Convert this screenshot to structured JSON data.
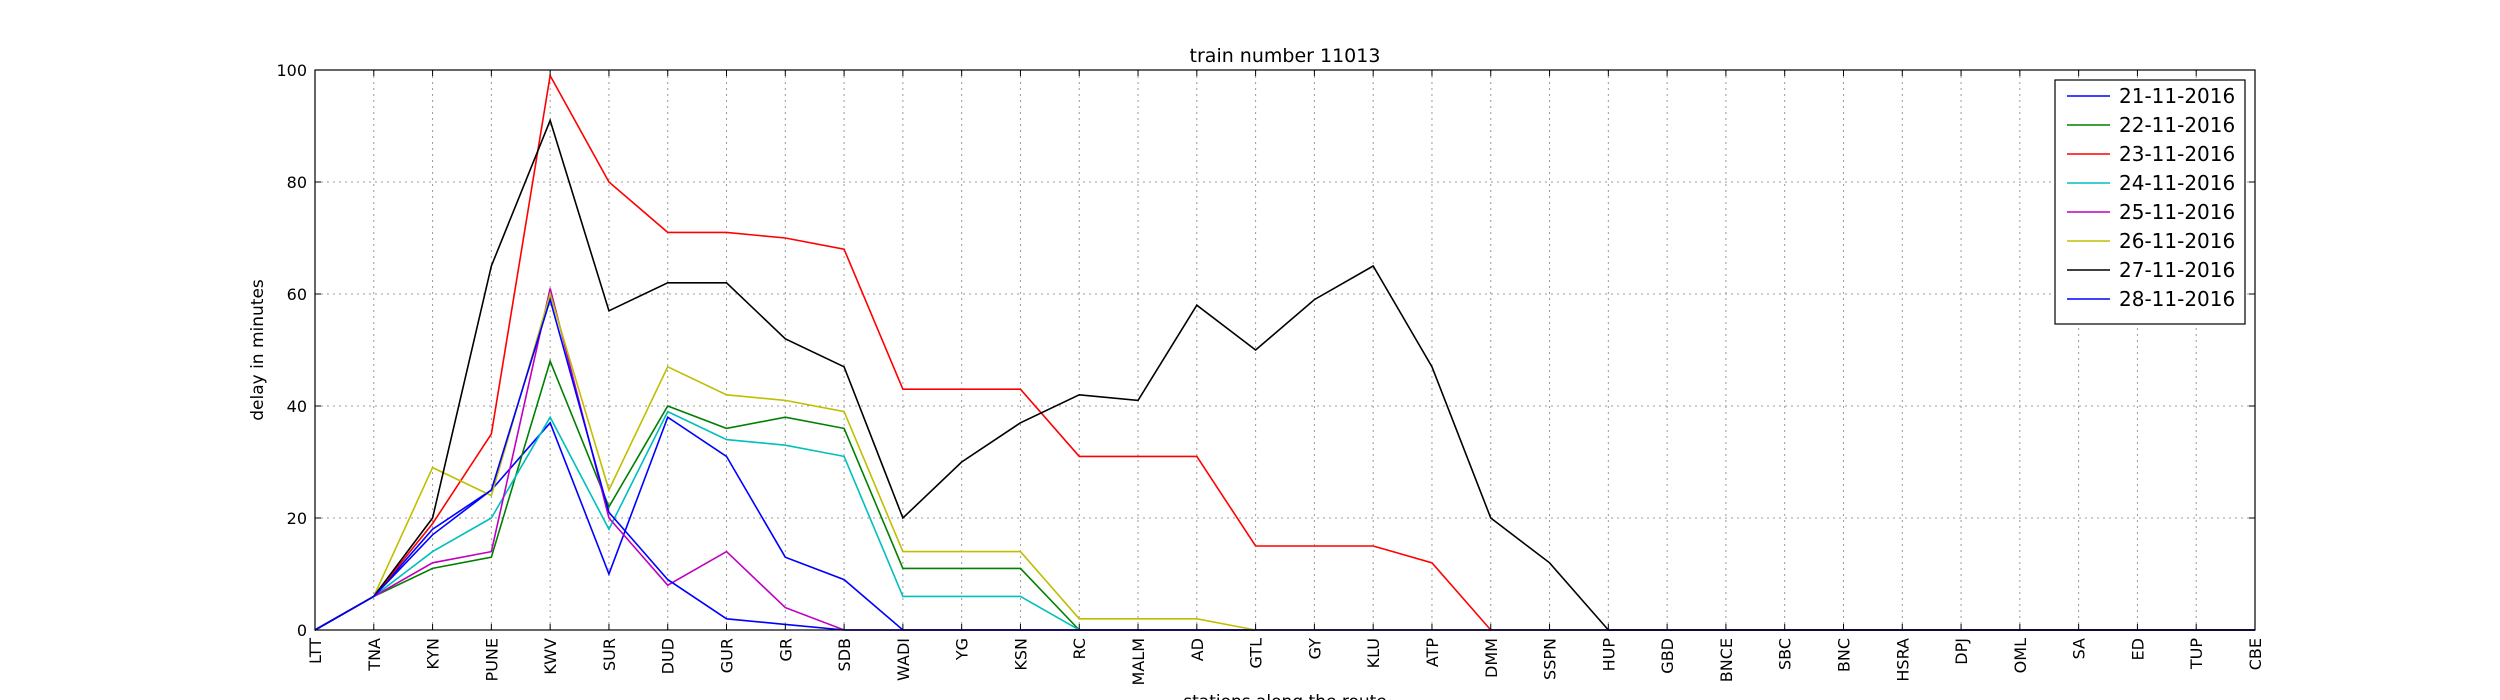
{
  "chart_data": {
    "type": "line",
    "title": "train number 11013",
    "xlabel": "stations along the route",
    "ylabel": "delay in minutes",
    "ylim": [
      0,
      100
    ],
    "yticks": [
      0,
      20,
      40,
      60,
      80,
      100
    ],
    "grid": true,
    "legend_position": "top-right",
    "categories": [
      "LTT",
      "TNA",
      "KYN",
      "PUNE",
      "KWV",
      "SUR",
      "DUD",
      "GUR",
      "GR",
      "SDB",
      "WADI",
      "YG",
      "KSN",
      "RC",
      "MALM",
      "AD",
      "GTL",
      "GY",
      "KLU",
      "ATP",
      "DMM",
      "SSPN",
      "HUP",
      "GBD",
      "BNCE",
      "SBC",
      "BNC",
      "HSRA",
      "DPJ",
      "OML",
      "SA",
      "ED",
      "TUP",
      "CBE"
    ],
    "series": [
      {
        "name": "21-11-2016",
        "color": "#0000ff",
        "values": [
          0,
          6,
          18,
          25,
          37,
          10,
          38,
          31,
          13,
          9,
          0,
          0,
          0,
          0,
          0,
          0,
          0,
          0,
          0,
          0,
          0,
          0,
          0,
          0,
          0,
          0,
          0,
          0,
          0,
          0,
          0,
          0,
          0,
          0
        ]
      },
      {
        "name": "22-11-2016",
        "color": "#008000",
        "values": [
          0,
          6,
          11,
          13,
          48,
          22,
          40,
          36,
          38,
          36,
          11,
          11,
          11,
          0,
          0,
          0,
          0,
          0,
          0,
          0,
          0,
          0,
          0,
          0,
          0,
          0,
          0,
          0,
          0,
          0,
          0,
          0,
          0,
          0
        ]
      },
      {
        "name": "23-11-2016",
        "color": "#ff0000",
        "values": [
          0,
          6,
          19,
          35,
          99,
          80,
          71,
          71,
          70,
          68,
          43,
          43,
          43,
          31,
          31,
          31,
          15,
          15,
          15,
          12,
          0,
          0,
          0,
          0,
          0,
          0,
          0,
          0,
          0,
          0,
          0,
          0,
          0,
          0
        ]
      },
      {
        "name": "24-11-2016",
        "color": "#00bfbf",
        "values": [
          0,
          6,
          14,
          20,
          38,
          18,
          39,
          34,
          33,
          31,
          6,
          6,
          6,
          0,
          0,
          0,
          0,
          0,
          0,
          0,
          0,
          0,
          0,
          0,
          0,
          0,
          0,
          0,
          0,
          0,
          0,
          0,
          0,
          0
        ]
      },
      {
        "name": "25-11-2016",
        "color": "#bf00bf",
        "values": [
          0,
          6,
          12,
          14,
          61,
          20,
          8,
          14,
          4,
          0,
          0,
          0,
          0,
          0,
          0,
          0,
          0,
          0,
          0,
          0,
          0,
          0,
          0,
          0,
          0,
          0,
          0,
          0,
          0,
          0,
          0,
          0,
          0,
          0
        ]
      },
      {
        "name": "26-11-2016",
        "color": "#bfbf00",
        "values": [
          0,
          6,
          29,
          24,
          60,
          25,
          47,
          42,
          41,
          39,
          14,
          14,
          14,
          2,
          2,
          2,
          0,
          0,
          0,
          0,
          0,
          0,
          0,
          0,
          0,
          0,
          0,
          0,
          0,
          0,
          0,
          0,
          0,
          0
        ]
      },
      {
        "name": "27-11-2016",
        "color": "#000000",
        "values": [
          0,
          6,
          20,
          65,
          91,
          57,
          62,
          62,
          52,
          47,
          20,
          30,
          37,
          42,
          41,
          58,
          50,
          59,
          65,
          47,
          20,
          12,
          0,
          0,
          0,
          0,
          0,
          0,
          0,
          0,
          0,
          0,
          0,
          0
        ]
      },
      {
        "name": "28-11-2016",
        "color": "#0000ff",
        "values": [
          0,
          6,
          17,
          25,
          59,
          21,
          9,
          2,
          1,
          0,
          0,
          0,
          0,
          0,
          0,
          0,
          0,
          0,
          0,
          0,
          0,
          0,
          0,
          0,
          0,
          0,
          0,
          0,
          0,
          0,
          0,
          0,
          0,
          0
        ]
      }
    ]
  }
}
